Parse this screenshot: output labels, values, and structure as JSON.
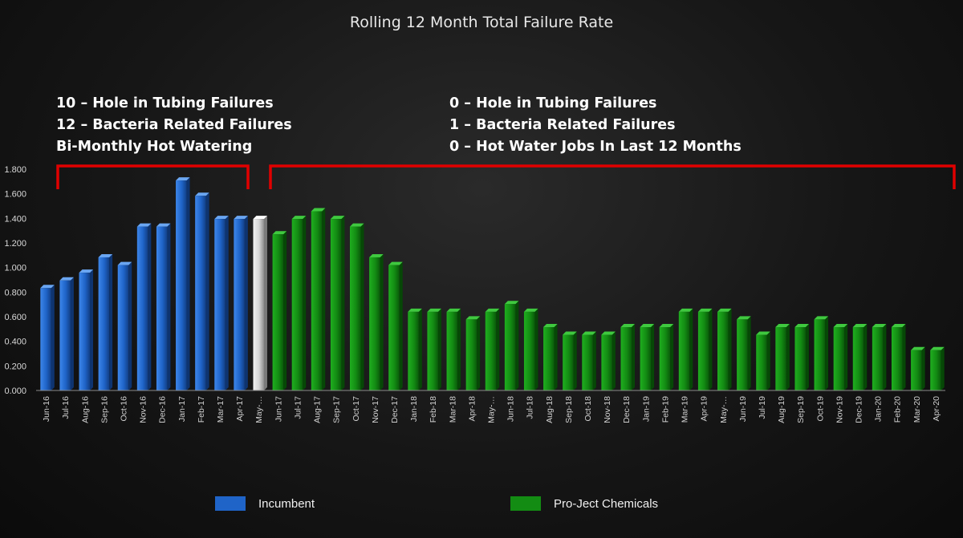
{
  "chart_data": {
    "type": "bar",
    "title": "Rolling 12 Month Total Failure Rate",
    "xlabel": "",
    "ylabel": "",
    "ylim": [
      0,
      1.8
    ],
    "yticks": [
      "0.000",
      "0.200",
      "0.400",
      "0.600",
      "0.800",
      "1.000",
      "1.200",
      "1.400",
      "1.600",
      "1.800"
    ],
    "grid": false,
    "categories": [
      "Jun-16",
      "Jul-16",
      "Aug-16",
      "Sep-16",
      "Oct-16",
      "Nov-16",
      "Dec-16",
      "Jan-17",
      "Feb-17",
      "Mar-17",
      "Apr-17",
      "May-…",
      "Jun-17",
      "Jul-17",
      "Aug-17",
      "Sep-17",
      "Oct-17",
      "Nov-17",
      "Dec-17",
      "Jan-18",
      "Feb-18",
      "Mar-18",
      "Apr-18",
      "May-…",
      "Jun-18",
      "Jul-18",
      "Aug-18",
      "Sep-18",
      "Oct-18",
      "Nov-18",
      "Dec-18",
      "Jan-19",
      "Feb-19",
      "Mar-19",
      "Apr-19",
      "May-…",
      "Jun-19",
      "Jul-19",
      "Aug-19",
      "Sep-19",
      "Oct-19",
      "Nov-19",
      "Dec-19",
      "Jan-20",
      "Feb-20",
      "Mar-20",
      "Apr-20"
    ],
    "values": [
      0.833,
      0.895,
      0.958,
      1.083,
      1.02,
      1.333,
      1.333,
      1.708,
      1.583,
      1.395,
      1.395,
      1.395,
      1.27,
      1.395,
      1.458,
      1.395,
      1.333,
      1.083,
      1.02,
      0.64,
      0.64,
      0.64,
      0.578,
      0.64,
      0.703,
      0.64,
      0.515,
      0.453,
      0.453,
      0.453,
      0.515,
      0.515,
      0.515,
      0.64,
      0.64,
      0.64,
      0.578,
      0.453,
      0.515,
      0.515,
      0.578,
      0.515,
      0.515,
      0.515,
      0.515,
      0.328,
      0.328
    ],
    "bar_groups": [
      "incumbent",
      "incumbent",
      "incumbent",
      "incumbent",
      "incumbent",
      "incumbent",
      "incumbent",
      "incumbent",
      "incumbent",
      "incumbent",
      "incumbent",
      "transition",
      "project",
      "project",
      "project",
      "project",
      "project",
      "project",
      "project",
      "project",
      "project",
      "project",
      "project",
      "project",
      "project",
      "project",
      "project",
      "project",
      "project",
      "project",
      "project",
      "project",
      "project",
      "project",
      "project",
      "project",
      "project",
      "project",
      "project",
      "project",
      "project",
      "project",
      "project",
      "project",
      "project",
      "project",
      "project"
    ],
    "colors": {
      "incumbent": "#1f64c8",
      "transition": "#d4d4d4",
      "project": "#138c13",
      "bracket": "#e00000"
    },
    "legend": {
      "placement": "bottom",
      "entries": [
        {
          "name": "Incumbent",
          "color": "#1f64c8"
        },
        {
          "name": "Pro-Ject Chemicals",
          "color": "#138c13"
        }
      ]
    },
    "annotations": {
      "left": [
        "10 – Hole in Tubing Failures",
        "12 – Bacteria Related Failures",
        "Bi-Monthly Hot Watering"
      ],
      "right": [
        "0 – Hole in Tubing Failures",
        "1 – Bacteria Related Failures",
        "0 – Hot Water Jobs In Last 12 Months"
      ]
    }
  }
}
